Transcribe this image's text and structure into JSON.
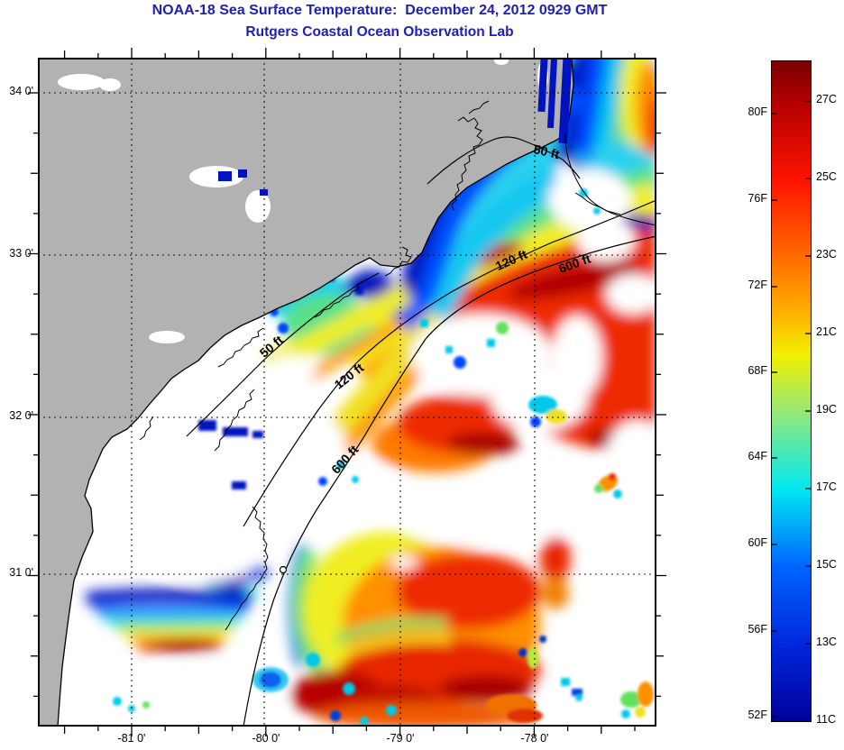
{
  "title": {
    "line1": "NOAA-18 Sea Surface Temperature:  December 24, 2012 0929 GMT",
    "line2": "Rutgers Coastal Ocean Observation Lab"
  },
  "axes": {
    "x_tick_labels": [
      "-81 0'",
      "-80 0'",
      "-79 0'",
      "-78 0'"
    ],
    "y_tick_labels": [
      "34 0'",
      "33 0'",
      "32 0'",
      "31 0'"
    ]
  },
  "contour_labels": {
    "shallow": "50 ft",
    "mid": "120 ft",
    "deep": "600 ft"
  },
  "colorbar": {
    "fahrenheit_ticks": [
      "80F",
      "76F",
      "72F",
      "68F",
      "64F",
      "60F",
      "56F",
      "52F"
    ],
    "celsius_ticks": [
      "27C",
      "25C",
      "23C",
      "21C",
      "19C",
      "17C",
      "15C",
      "13C",
      "11C"
    ],
    "scale_colors": {
      "top_dark_red": "#7a0000",
      "red": "#ff1400",
      "orange": "#ff6c00",
      "yellow": "#f0f000",
      "green": "#96e878",
      "cyan": "#00e8f0",
      "blue": "#0064ff",
      "bottom_navy": "#00009b"
    }
  },
  "colors": {
    "title_blue": "#1e1eb8",
    "land_gray": "#b2b2b2",
    "no_data_white": "#ffffff"
  }
}
